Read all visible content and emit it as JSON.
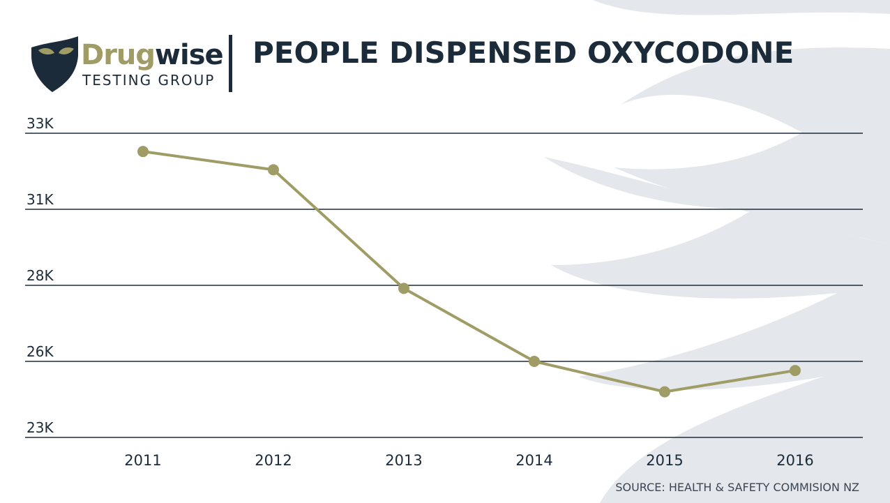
{
  "logo": {
    "brand": [
      "Drug",
      "wise"
    ],
    "tagline": "TESTING GROUP"
  },
  "chart_data": {
    "type": "line",
    "title": "PEOPLE DISPENSED OXYCODONE",
    "source": "SOURCE: HEALTH & SAFETY COMMISION NZ",
    "categories": [
      "2011",
      "2012",
      "2013",
      "2014",
      "2015",
      "2016"
    ],
    "series": [
      {
        "name": "People dispensed oxycodone",
        "color": "#9f9c66",
        "values": [
          32400,
          31800,
          27900,
          25500,
          24500,
          25200
        ]
      }
    ],
    "ylim": [
      23000,
      33000
    ],
    "yticks": [
      {
        "value": 23000,
        "label": "23K"
      },
      {
        "value": 25500,
        "label": "26K"
      },
      {
        "value": 28000,
        "label": "28K"
      },
      {
        "value": 30500,
        "label": "31K"
      },
      {
        "value": 33000,
        "label": "33K"
      }
    ],
    "grid": true
  }
}
